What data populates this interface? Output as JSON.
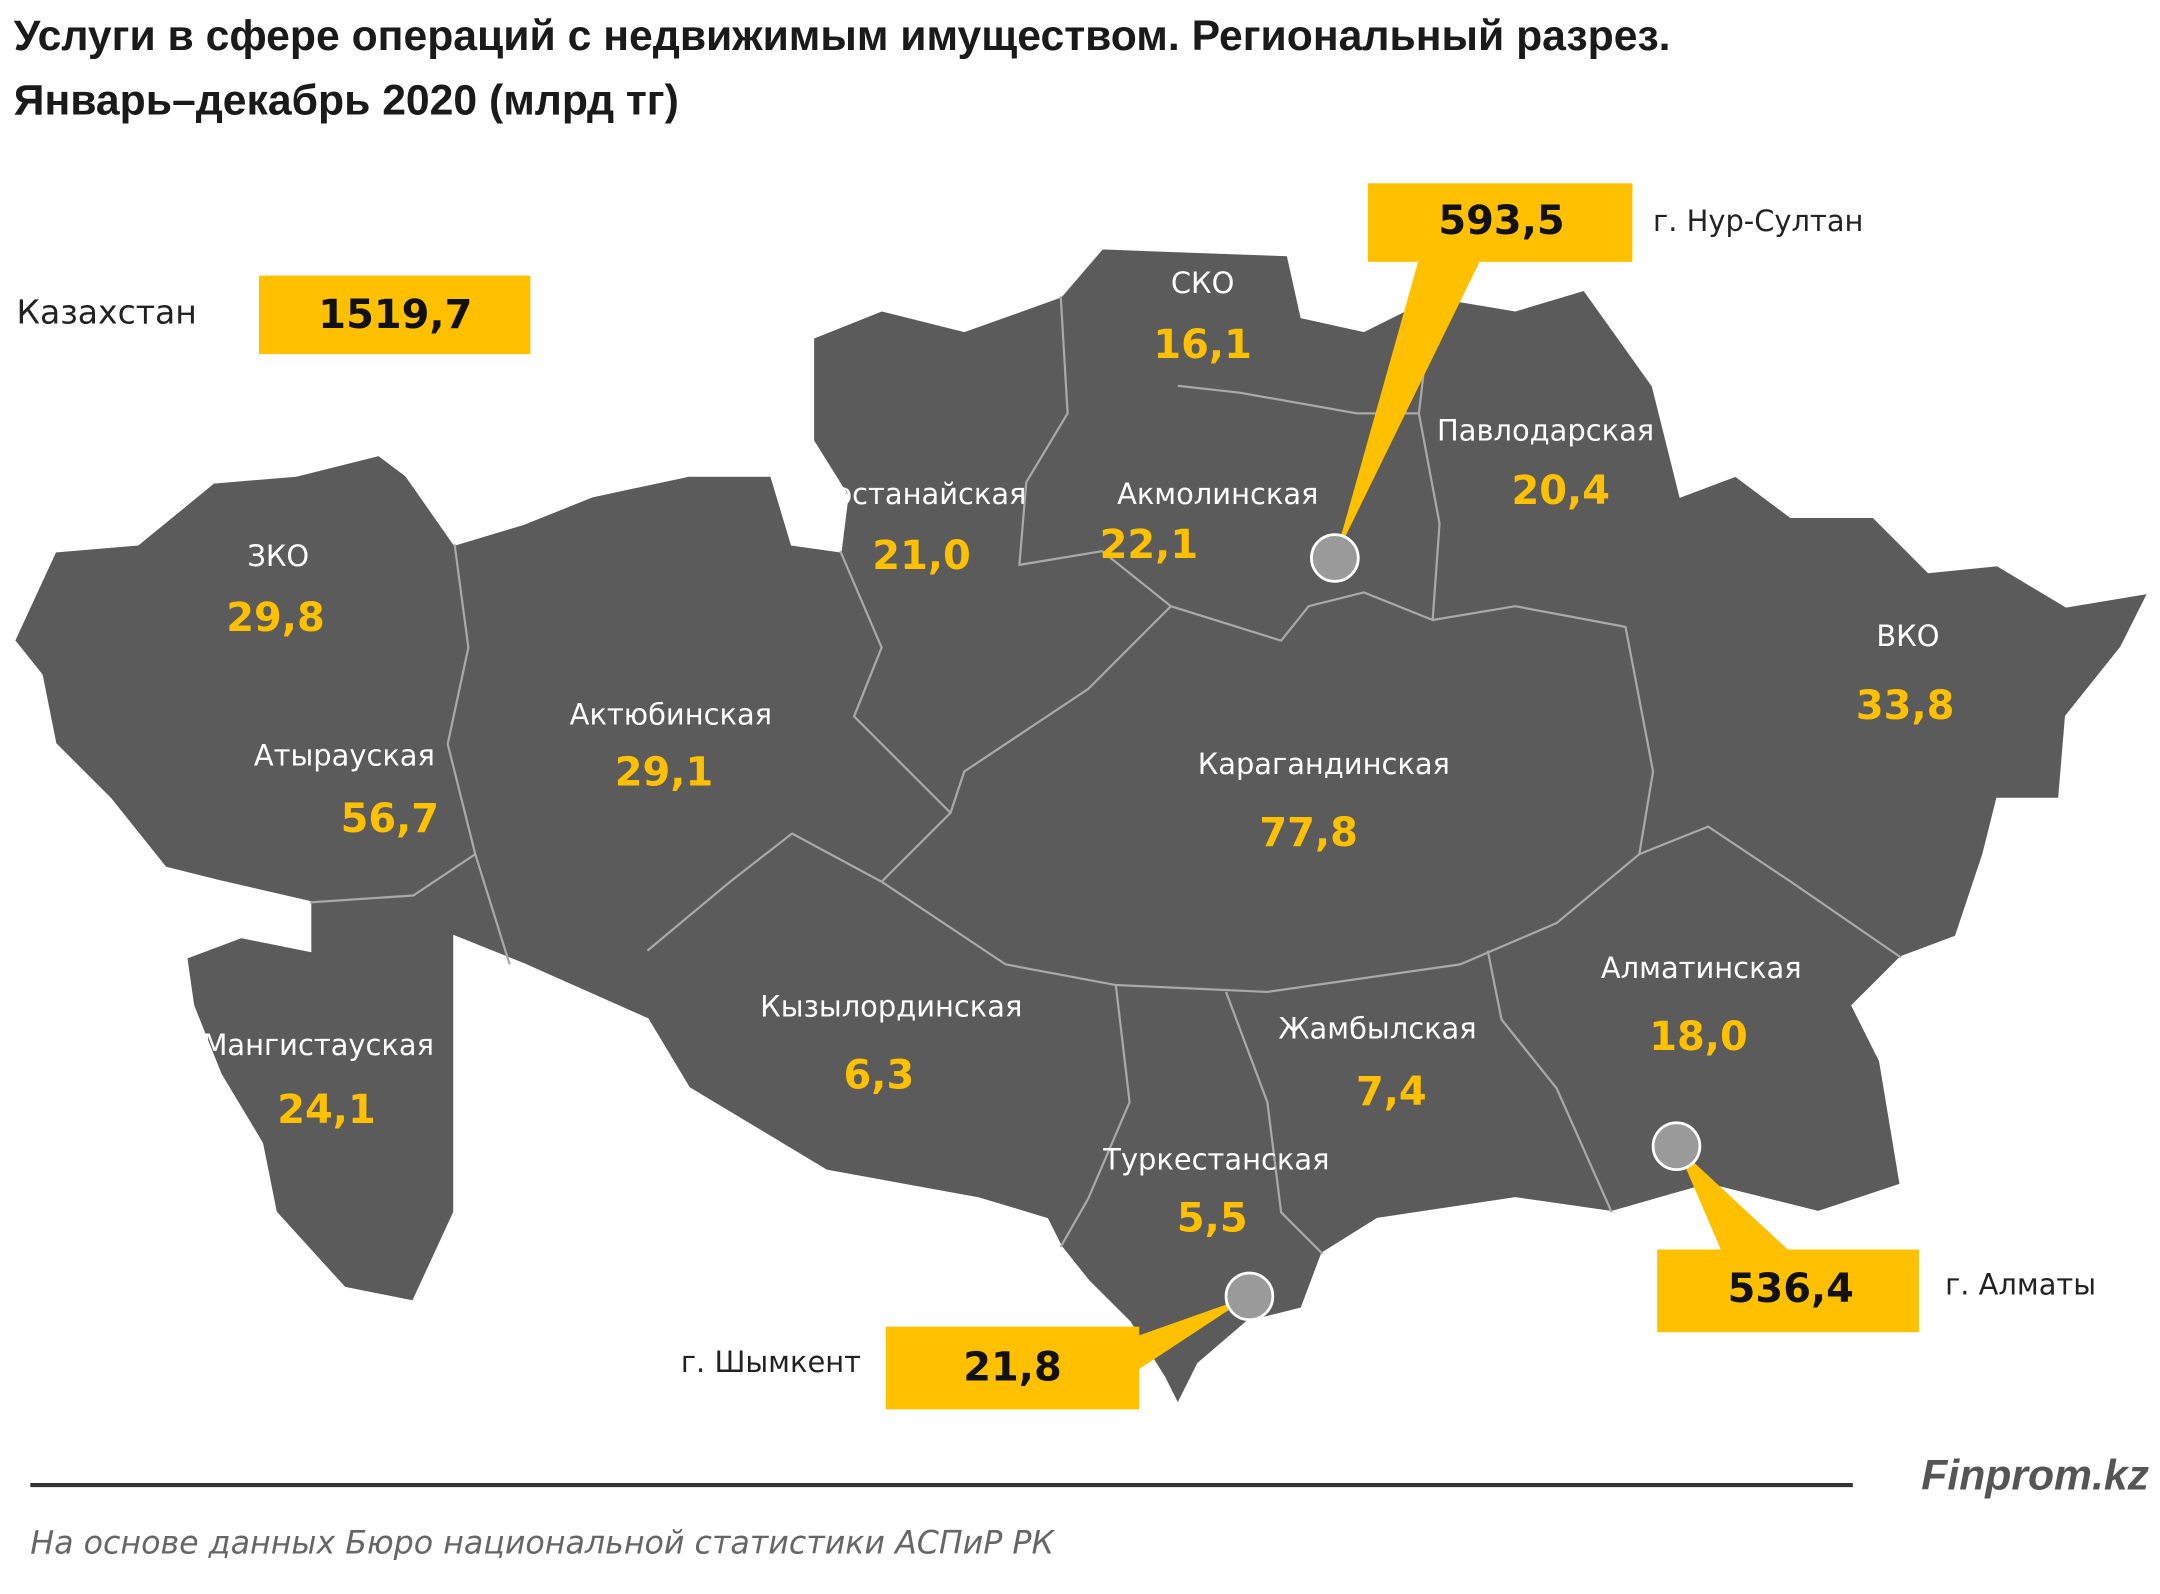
{
  "header": {
    "title_line1": "Услуги в сфере операций с недвижимым имуществом. Региональный разрез.",
    "title_line2": "Январь–декабрь 2020  (млрд тг)"
  },
  "total": {
    "label": "Казахстан",
    "value": "1519,7"
  },
  "regions": [
    {
      "name": "СКО",
      "value": "16,1"
    },
    {
      "name": "Павлодарская",
      "value": "20,4"
    },
    {
      "name": "Костанайская",
      "value": "21,0"
    },
    {
      "name": "Акмолинская",
      "value": "22,1"
    },
    {
      "name": "ЗКО",
      "value": "29,8"
    },
    {
      "name": "ВКО",
      "value": "33,8"
    },
    {
      "name": "Актюбинская",
      "value": "29,1"
    },
    {
      "name": "Атырауская",
      "value": "56,7"
    },
    {
      "name": "Карагандинская",
      "value": "77,8"
    },
    {
      "name": "Алматинская",
      "value": "18,0"
    },
    {
      "name": "Кызылординская",
      "value": "6,3"
    },
    {
      "name": "Жамбылская",
      "value": "7,4"
    },
    {
      "name": "Мангистауская",
      "value": "24,1"
    },
    {
      "name": "Туркестанская",
      "value": "5,5"
    }
  ],
  "cities": [
    {
      "name": "г. Нур-Султан",
      "value": "593,5"
    },
    {
      "name": "г. Алматы",
      "value": "536,4"
    },
    {
      "name": "г. Шымкент",
      "value": "21,8"
    }
  ],
  "footer": {
    "brand": "Finprom.kz",
    "source": "На основе данных  Бюро национальной  статистики АСПиР РК"
  }
}
